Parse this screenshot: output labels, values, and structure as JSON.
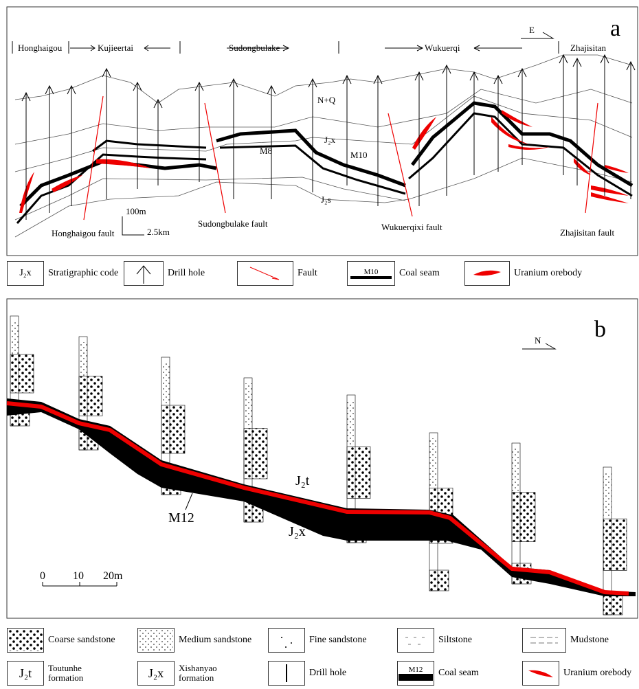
{
  "panel_a": {
    "label": "a",
    "direction": "E",
    "locations": [
      "Honghaigou",
      "Kujieertai",
      "Sudongbulake",
      "Wukuerqi",
      "Zhajisitan"
    ],
    "strata": [
      "N+Q",
      "J₂x",
      "M8",
      "M10",
      "J₂s"
    ],
    "faults": [
      "Honghaigou fault",
      "Sudongbulake fault",
      "Wukuerqixi fault",
      "Zhajisitan fault"
    ],
    "scale": [
      "100m",
      "2.5km"
    ]
  },
  "legend_a": {
    "code": "J₂x",
    "items": [
      "Stratigraphic code",
      "Drill hole",
      "Fault",
      "Coal seam",
      "Uranium orebody"
    ],
    "seam": "M10"
  },
  "panel_b": {
    "label": "b",
    "direction": "N",
    "strata": [
      "J₂t",
      "J₂x",
      "M12"
    ],
    "scale": [
      "0",
      "10",
      "20m"
    ]
  },
  "legend_b": {
    "lithology": [
      "Coarse sandstone",
      "Medium sandstone",
      "Fine sandstone",
      "Siltstone",
      "Mudstone"
    ],
    "codes": [
      "J₂t",
      "J₂x"
    ],
    "formations": [
      "Toutunhe formation",
      "Xishanyao formation"
    ],
    "items": [
      "Drill hole",
      "Coal seam",
      "Uranium orebody"
    ],
    "seam": "M12"
  }
}
